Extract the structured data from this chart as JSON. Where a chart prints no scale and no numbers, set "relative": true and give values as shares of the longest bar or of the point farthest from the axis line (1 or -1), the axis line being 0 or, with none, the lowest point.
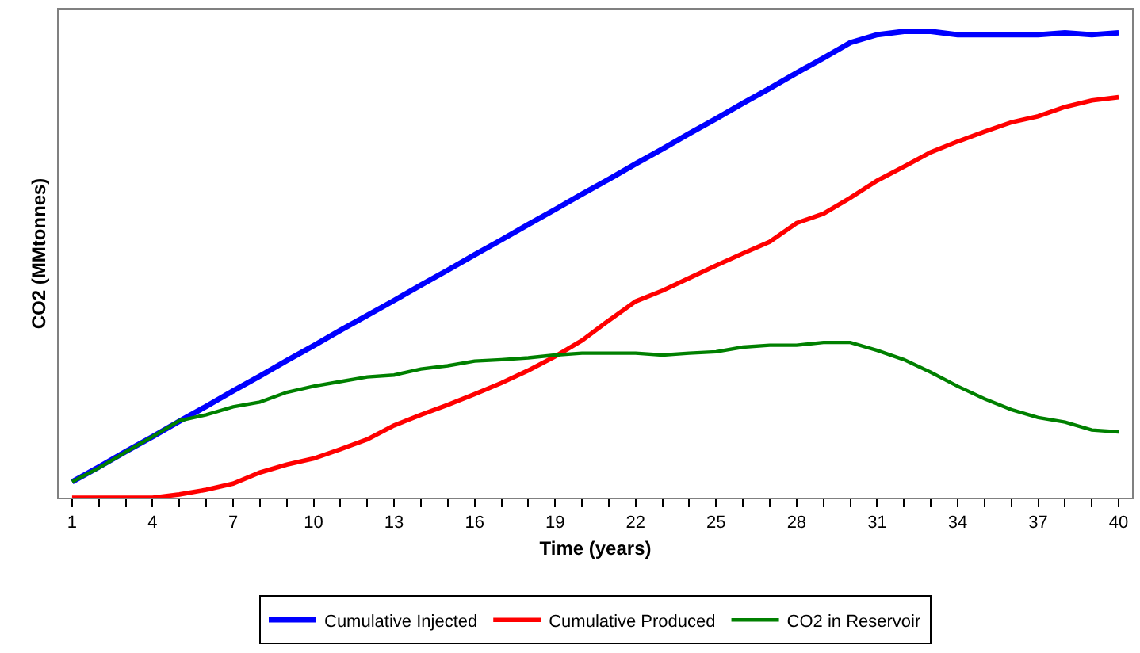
{
  "chart_data": {
    "type": "line",
    "xlabel": "Time (years)",
    "ylabel": "CO2 (MMtonnes)",
    "relative": true,
    "x": [
      1,
      2,
      3,
      4,
      5,
      6,
      7,
      8,
      9,
      10,
      11,
      12,
      13,
      14,
      15,
      16,
      17,
      18,
      19,
      20,
      21,
      22,
      23,
      24,
      25,
      26,
      27,
      28,
      29,
      30,
      31,
      32,
      33,
      34,
      35,
      36,
      37,
      38,
      39,
      40
    ],
    "xlim": [
      0.5,
      40.5
    ],
    "xticks": [
      1,
      {
        "value": 2,
        "label": null
      },
      {
        "value": 3,
        "label": null
      },
      4,
      {
        "value": 5,
        "label": null
      },
      {
        "value": 6,
        "label": null
      },
      7,
      {
        "value": 8,
        "label": null
      },
      {
        "value": 9,
        "label": null
      },
      10,
      {
        "value": 11,
        "label": null
      },
      {
        "value": 12,
        "label": null
      },
      13,
      {
        "value": 14,
        "label": null
      },
      {
        "value": 15,
        "label": null
      },
      16,
      {
        "value": 17,
        "label": null
      },
      {
        "value": 18,
        "label": null
      },
      19,
      {
        "value": 20,
        "label": null
      },
      {
        "value": 21,
        "label": null
      },
      22,
      {
        "value": 23,
        "label": null
      },
      {
        "value": 24,
        "label": null
      },
      25,
      {
        "value": 26,
        "label": null
      },
      {
        "value": 27,
        "label": null
      },
      28,
      {
        "value": 29,
        "label": null
      },
      {
        "value": 30,
        "label": null
      },
      31,
      {
        "value": 32,
        "label": null
      },
      {
        "value": 33,
        "label": null
      },
      34,
      {
        "value": 35,
        "label": null
      },
      {
        "value": 36,
        "label": null
      },
      37,
      {
        "value": 38,
        "label": null
      },
      {
        "value": 39,
        "label": null
      },
      40
    ],
    "grid": false,
    "legend": "bottom",
    "marker": "none",
    "line_style": "solid",
    "series": [
      {
        "name": "Cumulative Injected",
        "color": "#0000ff",
        "values": [
          0.034,
          0.066,
          0.099,
          0.131,
          0.164,
          0.196,
          0.229,
          0.261,
          0.294,
          0.326,
          0.359,
          0.391,
          0.423,
          0.456,
          0.488,
          0.521,
          0.553,
          0.586,
          0.618,
          0.651,
          0.683,
          0.716,
          0.748,
          0.781,
          0.813,
          0.846,
          0.878,
          0.911,
          0.943,
          0.976,
          0.993,
          1,
          1,
          0.993,
          0.993,
          0.993,
          0.993,
          0.997,
          0.993,
          0.997
        ]
      },
      {
        "name": "Cumulative Produced",
        "color": "#ff0000",
        "values": [
          0,
          0,
          0,
          0,
          0.007,
          0.017,
          0.03,
          0.054,
          0.071,
          0.084,
          0.104,
          0.125,
          0.155,
          0.178,
          0.199,
          0.222,
          0.246,
          0.273,
          0.303,
          0.337,
          0.38,
          0.421,
          0.444,
          0.471,
          0.498,
          0.524,
          0.549,
          0.589,
          0.609,
          0.643,
          0.68,
          0.71,
          0.741,
          0.764,
          0.785,
          0.805,
          0.818,
          0.838,
          0.852,
          0.859
        ]
      },
      {
        "name": "CO2 in Reservoir",
        "color": "#008000",
        "values": [
          0.034,
          0.064,
          0.098,
          0.131,
          0.165,
          0.178,
          0.195,
          0.205,
          0.226,
          0.239,
          0.249,
          0.259,
          0.263,
          0.276,
          0.283,
          0.293,
          0.296,
          0.3,
          0.306,
          0.31,
          0.31,
          0.31,
          0.306,
          0.31,
          0.313,
          0.323,
          0.327,
          0.327,
          0.333,
          0.333,
          0.316,
          0.296,
          0.269,
          0.239,
          0.212,
          0.189,
          0.172,
          0.162,
          0.145,
          0.141
        ]
      }
    ]
  }
}
